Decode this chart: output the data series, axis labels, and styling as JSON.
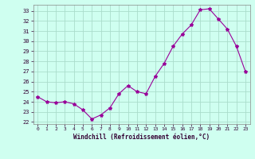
{
  "hours": [
    0,
    1,
    2,
    3,
    4,
    5,
    6,
    7,
    8,
    9,
    10,
    11,
    12,
    13,
    14,
    15,
    16,
    17,
    18,
    19,
    20,
    21,
    22,
    23
  ],
  "values": [
    24.5,
    24.0,
    23.9,
    24.0,
    23.8,
    23.2,
    22.3,
    22.7,
    23.4,
    24.8,
    25.6,
    25.0,
    24.8,
    26.5,
    27.8,
    29.5,
    30.7,
    31.6,
    33.1,
    33.2,
    32.2,
    31.2,
    29.5,
    27.0
  ],
  "line_color": "#990099",
  "marker": "*",
  "marker_size": 3,
  "bg_color": "#cffff0",
  "grid_color": "#aaddcc",
  "xlabel": "Windchill (Refroidissement éolien,°C)",
  "ylabel_ticks": [
    22,
    23,
    24,
    25,
    26,
    27,
    28,
    29,
    30,
    31,
    32,
    33
  ],
  "ylim": [
    21.8,
    33.6
  ],
  "xlim": [
    -0.5,
    23.5
  ]
}
